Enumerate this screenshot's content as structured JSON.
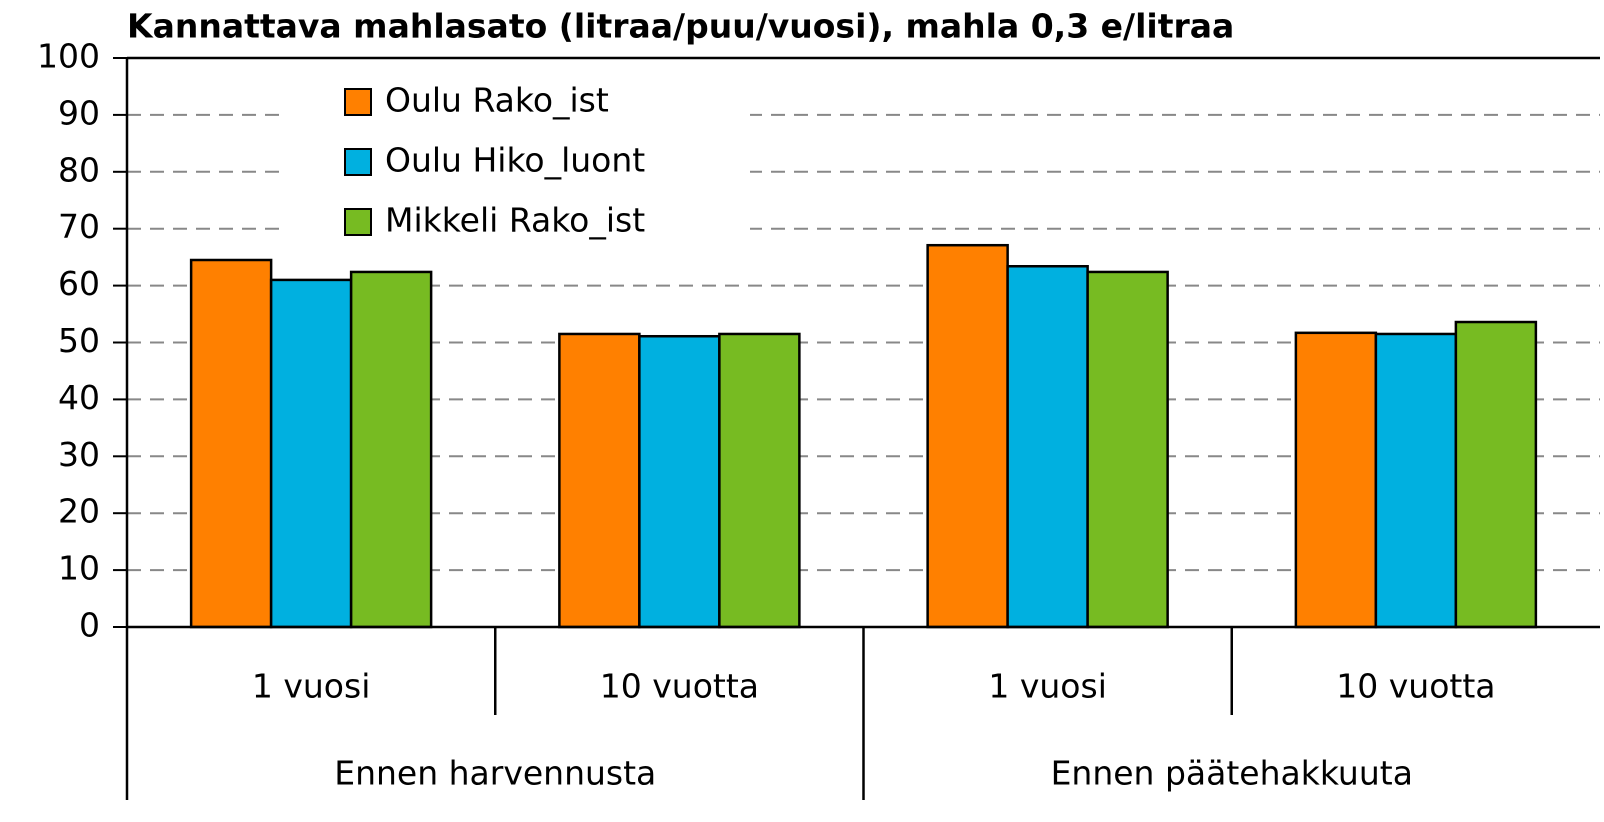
{
  "chart_data": {
    "type": "bar",
    "title": "Kannattava mahlasato (litraa/puu/vuosi), mahla 0,3 e/litraa",
    "categories": [
      "1 vuosi",
      "10 vuotta",
      "1 vuosi",
      "10 vuotta"
    ],
    "category_groups": [
      "Ennen harvennusta",
      "Ennen päätehakkuuta"
    ],
    "series": [
      {
        "name": "Oulu Rako_ist",
        "color": "#ff8000",
        "values": [
          64.5,
          51.5,
          67.1,
          51.7
        ]
      },
      {
        "name": "Oulu Hiko_luont",
        "color": "#00b0e0",
        "values": [
          61.0,
          51.1,
          63.4,
          51.5
        ]
      },
      {
        "name": "Mikkeli Rako_ist",
        "color": "#77bb22",
        "values": [
          62.4,
          51.5,
          62.4,
          53.6
        ]
      }
    ],
    "ylim": [
      0,
      100
    ],
    "yticks": [
      0,
      10,
      20,
      30,
      40,
      50,
      60,
      70,
      80,
      90,
      100
    ],
    "grid": true,
    "legend": "top-left"
  }
}
